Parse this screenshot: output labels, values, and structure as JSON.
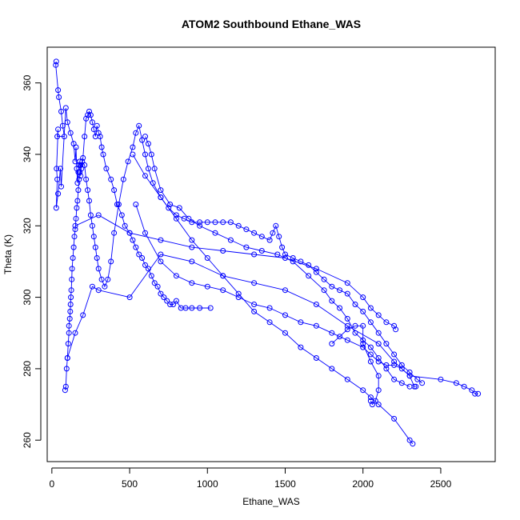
{
  "chart_data": {
    "type": "line",
    "title": "ATOM2 Southbound Ethane_WAS",
    "xlabel": "Ethane_WAS",
    "ylabel": "Theta (K)",
    "xlim": [
      -30,
      2850
    ],
    "ylim": [
      254,
      370
    ],
    "xticks": [
      0,
      500,
      1000,
      1500,
      2000,
      2500
    ],
    "yticks": [
      260,
      280,
      300,
      320,
      340,
      360
    ],
    "grid": false,
    "legend": "none",
    "color": "#0000ff",
    "series": [
      {
        "points": [
          [
            28,
            366
          ],
          [
            25,
            365
          ],
          [
            40,
            358
          ],
          [
            45,
            356
          ],
          [
            60,
            352
          ],
          [
            70,
            348
          ],
          [
            80,
            345
          ],
          [
            35,
            345
          ],
          [
            40,
            347
          ],
          [
            30,
            336
          ],
          [
            35,
            333
          ],
          [
            28,
            325
          ],
          [
            40,
            329
          ],
          [
            55,
            336
          ],
          [
            60,
            331
          ],
          [
            90,
            353
          ],
          [
            100,
            349
          ],
          [
            120,
            346
          ],
          [
            140,
            343
          ],
          [
            150,
            338
          ],
          [
            155,
            342
          ],
          [
            160,
            336
          ],
          [
            165,
            332
          ],
          [
            170,
            335
          ],
          [
            175,
            337
          ],
          [
            180,
            338
          ],
          [
            185,
            334
          ],
          [
            190,
            336
          ],
          [
            200,
            339
          ],
          [
            210,
            345
          ],
          [
            220,
            350
          ],
          [
            230,
            351
          ],
          [
            240,
            352
          ],
          [
            250,
            351
          ],
          [
            260,
            349
          ],
          [
            270,
            347
          ],
          [
            280,
            345
          ],
          [
            290,
            348
          ],
          [
            300,
            346
          ],
          [
            310,
            345
          ],
          [
            320,
            342
          ],
          [
            330,
            340
          ],
          [
            350,
            336
          ],
          [
            380,
            333
          ],
          [
            400,
            330
          ],
          [
            420,
            326
          ],
          [
            450,
            323
          ],
          [
            470,
            320
          ],
          [
            500,
            318
          ],
          [
            520,
            316
          ],
          [
            540,
            314
          ],
          [
            560,
            312
          ],
          [
            580,
            311
          ],
          [
            600,
            309
          ],
          [
            620,
            308
          ],
          [
            640,
            306
          ],
          [
            660,
            304
          ],
          [
            680,
            303
          ],
          [
            700,
            301
          ],
          [
            720,
            300
          ],
          [
            740,
            299
          ],
          [
            760,
            298
          ],
          [
            780,
            298
          ],
          [
            800,
            299
          ],
          [
            830,
            297
          ],
          [
            860,
            297
          ],
          [
            900,
            297
          ],
          [
            950,
            297
          ],
          [
            1020,
            297
          ]
        ]
      },
      {
        "points": [
          [
            85,
            274
          ],
          [
            90,
            275
          ],
          [
            95,
            280
          ],
          [
            100,
            283
          ],
          [
            105,
            287
          ],
          [
            110,
            290
          ],
          [
            110,
            292
          ],
          [
            115,
            294
          ],
          [
            118,
            296
          ],
          [
            120,
            298
          ],
          [
            122,
            300
          ],
          [
            125,
            302
          ],
          [
            128,
            305
          ],
          [
            130,
            308
          ],
          [
            135,
            311
          ],
          [
            140,
            314
          ],
          [
            145,
            317
          ],
          [
            150,
            319
          ],
          [
            155,
            322
          ],
          [
            160,
            325
          ],
          [
            165,
            327
          ],
          [
            170,
            330
          ],
          [
            175,
            333
          ],
          [
            180,
            335
          ],
          [
            185,
            337
          ],
          [
            195,
            338
          ],
          [
            210,
            337
          ],
          [
            220,
            333
          ],
          [
            230,
            330
          ],
          [
            240,
            327
          ],
          [
            250,
            323
          ],
          [
            260,
            320
          ],
          [
            270,
            317
          ],
          [
            280,
            314
          ],
          [
            290,
            311
          ],
          [
            300,
            308
          ],
          [
            320,
            305
          ],
          [
            340,
            303
          ],
          [
            360,
            305
          ],
          [
            380,
            310
          ],
          [
            400,
            318
          ],
          [
            430,
            326
          ],
          [
            460,
            333
          ],
          [
            490,
            338
          ],
          [
            520,
            342
          ],
          [
            540,
            346
          ],
          [
            560,
            348
          ],
          [
            580,
            344
          ],
          [
            600,
            340
          ],
          [
            620,
            336
          ],
          [
            650,
            332
          ],
          [
            700,
            328
          ],
          [
            750,
            325
          ],
          [
            800,
            323
          ],
          [
            850,
            322
          ],
          [
            900,
            321
          ],
          [
            950,
            321
          ],
          [
            1000,
            321
          ],
          [
            1050,
            321
          ],
          [
            1100,
            321
          ],
          [
            1150,
            321
          ],
          [
            1200,
            320
          ],
          [
            1250,
            319
          ],
          [
            1300,
            318
          ],
          [
            1350,
            317
          ],
          [
            1400,
            316
          ],
          [
            1420,
            318
          ],
          [
            1440,
            320
          ],
          [
            1460,
            317
          ],
          [
            1480,
            314
          ],
          [
            1500,
            312
          ],
          [
            1550,
            311
          ],
          [
            1600,
            310
          ],
          [
            1650,
            309
          ],
          [
            1700,
            307
          ],
          [
            1750,
            305
          ],
          [
            1800,
            303
          ],
          [
            1850,
            302
          ],
          [
            1900,
            301
          ],
          [
            1950,
            298
          ],
          [
            2000,
            296
          ],
          [
            2050,
            293
          ],
          [
            2100,
            290
          ],
          [
            2150,
            287
          ],
          [
            2200,
            284
          ],
          [
            2250,
            281
          ],
          [
            2300,
            279
          ],
          [
            2350,
            277
          ],
          [
            2380,
            276
          ]
        ]
      },
      {
        "points": [
          [
            100,
            283
          ],
          [
            150,
            290
          ],
          [
            200,
            295
          ],
          [
            260,
            303
          ],
          [
            300,
            302
          ],
          [
            500,
            300
          ],
          [
            700,
            312
          ],
          [
            900,
            310
          ],
          [
            1100,
            306
          ],
          [
            1300,
            304
          ],
          [
            1500,
            302
          ],
          [
            1700,
            298
          ],
          [
            1900,
            292
          ],
          [
            2100,
            287
          ],
          [
            2200,
            282
          ],
          [
            2300,
            278
          ],
          [
            2500,
            277
          ],
          [
            2600,
            276
          ],
          [
            2650,
            275
          ],
          [
            2700,
            274
          ],
          [
            2720,
            273
          ],
          [
            2740,
            273
          ]
        ]
      },
      {
        "points": [
          [
            520,
            340
          ],
          [
            600,
            334
          ],
          [
            700,
            328
          ],
          [
            800,
            322
          ],
          [
            900,
            316
          ],
          [
            1000,
            311
          ],
          [
            1100,
            306
          ],
          [
            1200,
            301
          ],
          [
            1300,
            296
          ],
          [
            1400,
            293
          ],
          [
            1500,
            290
          ],
          [
            1600,
            286
          ],
          [
            1700,
            283
          ],
          [
            1800,
            280
          ],
          [
            1900,
            277
          ],
          [
            2000,
            274
          ],
          [
            2050,
            272
          ],
          [
            2100,
            270
          ],
          [
            2200,
            266
          ],
          [
            2300,
            260
          ],
          [
            2320,
            259
          ]
        ]
      },
      {
        "points": [
          [
            540,
            326
          ],
          [
            600,
            318
          ],
          [
            700,
            310
          ],
          [
            800,
            306
          ],
          [
            900,
            304
          ],
          [
            1000,
            303
          ],
          [
            1100,
            302
          ],
          [
            1200,
            300
          ],
          [
            1300,
            298
          ],
          [
            1400,
            297
          ],
          [
            1500,
            295
          ],
          [
            1600,
            293
          ],
          [
            1700,
            292
          ],
          [
            1800,
            290
          ],
          [
            1900,
            288
          ],
          [
            2000,
            286
          ],
          [
            2050,
            284
          ],
          [
            2100,
            282
          ],
          [
            2150,
            281
          ],
          [
            2200,
            281
          ],
          [
            2250,
            280
          ],
          [
            2300,
            278
          ],
          [
            2330,
            275
          ],
          [
            2340,
            275
          ]
        ]
      },
      {
        "points": [
          [
            150,
            320
          ],
          [
            300,
            323
          ],
          [
            500,
            318
          ],
          [
            700,
            316
          ],
          [
            900,
            314
          ],
          [
            1100,
            313
          ],
          [
            1300,
            312
          ],
          [
            1500,
            311
          ],
          [
            1700,
            308
          ],
          [
            1900,
            304
          ],
          [
            2000,
            300
          ],
          [
            2050,
            297
          ],
          [
            2100,
            295
          ],
          [
            2150,
            293
          ],
          [
            2200,
            292
          ],
          [
            2210,
            291
          ]
        ]
      },
      {
        "points": [
          [
            600,
            345
          ],
          [
            620,
            343
          ],
          [
            640,
            340
          ],
          [
            660,
            336
          ],
          [
            700,
            330
          ],
          [
            760,
            326
          ],
          [
            820,
            325
          ],
          [
            880,
            322
          ],
          [
            950,
            320
          ],
          [
            1050,
            318
          ],
          [
            1150,
            316
          ],
          [
            1250,
            314
          ],
          [
            1350,
            313
          ],
          [
            1450,
            312
          ],
          [
            1550,
            310
          ],
          [
            1650,
            306
          ],
          [
            1750,
            302
          ],
          [
            1800,
            299
          ],
          [
            1850,
            297
          ],
          [
            1900,
            294
          ],
          [
            1950,
            290
          ],
          [
            2000,
            288
          ],
          [
            2050,
            286
          ],
          [
            2100,
            283
          ],
          [
            2150,
            280
          ],
          [
            2200,
            277
          ],
          [
            2250,
            276
          ],
          [
            2300,
            275
          ]
        ]
      },
      {
        "points": [
          [
            1800,
            287
          ],
          [
            1850,
            289
          ],
          [
            1900,
            291
          ],
          [
            1950,
            292
          ],
          [
            2000,
            292
          ],
          [
            2000,
            287
          ],
          [
            2050,
            282
          ],
          [
            2100,
            278
          ],
          [
            2100,
            274
          ],
          [
            2080,
            271
          ],
          [
            2060,
            270
          ],
          [
            2050,
            271
          ]
        ]
      }
    ]
  }
}
